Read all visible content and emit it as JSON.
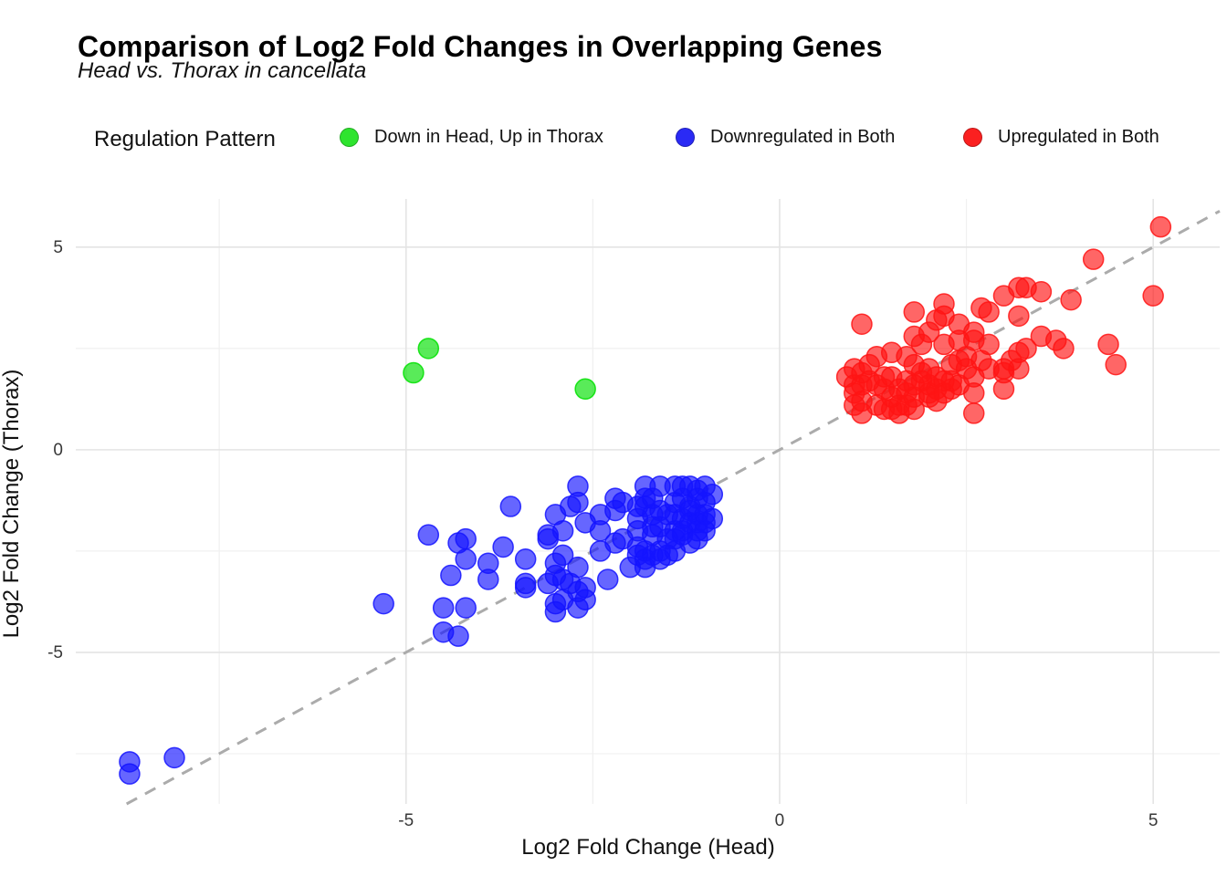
{
  "header": {
    "title": "Comparison of Log2 Fold Changes in Overlapping Genes",
    "subtitle": "Head vs. Thorax in cancellata"
  },
  "legend": {
    "title": "Regulation Pattern",
    "position": "top",
    "items": [
      {
        "label": "Down in Head, Up in Thorax",
        "color": "#2ee42e"
      },
      {
        "label": "Downregulated in Both",
        "color": "#2a2af5"
      },
      {
        "label": "Upregulated in Both",
        "color": "#fb2020"
      }
    ]
  },
  "chart_data": {
    "type": "scatter",
    "title": "Comparison of Log2 Fold Changes in Overlapping Genes",
    "subtitle": "Head vs. Thorax in cancellata",
    "xlabel": "Log2 Fold Change (Head)",
    "ylabel": "Log2 Fold Change (Thorax)",
    "xlim": [
      -9.42,
      5.89
    ],
    "ylim": [
      -8.74,
      6.19
    ],
    "x_ticks": [
      -5,
      0,
      5
    ],
    "y_ticks": [
      -5,
      0,
      5
    ],
    "x_minor_gridlines": [
      -7.5,
      -2.5,
      2.5
    ],
    "y_minor_gridlines": [
      -7.5,
      -2.5,
      2.5
    ],
    "grid": true,
    "legend_position": "top",
    "identity_line": {
      "style": "dashed",
      "slope": 1,
      "intercept": 0,
      "from_x": -8.74,
      "to_x": 5.89,
      "color": "#ababab"
    },
    "point_opacity": 0.65,
    "series": [
      {
        "name": "Down in Head, Up in Thorax",
        "color": "#00e000",
        "points": [
          [
            -4.9,
            1.9
          ],
          [
            -4.7,
            2.5
          ],
          [
            -2.6,
            1.5
          ]
        ]
      },
      {
        "name": "Downregulated in Both",
        "color": "#1414ff",
        "points": [
          [
            -8.7,
            -7.7
          ],
          [
            -8.7,
            -8.0
          ],
          [
            -8.1,
            -7.6
          ],
          [
            -5.3,
            -3.8
          ],
          [
            -4.7,
            -2.1
          ],
          [
            -4.5,
            -3.9
          ],
          [
            -4.5,
            -4.5
          ],
          [
            -4.4,
            -3.1
          ],
          [
            -4.3,
            -2.3
          ],
          [
            -4.3,
            -4.6
          ],
          [
            -4.2,
            -2.2
          ],
          [
            -4.2,
            -2.7
          ],
          [
            -4.2,
            -3.9
          ],
          [
            -3.9,
            -2.8
          ],
          [
            -3.9,
            -3.2
          ],
          [
            -3.7,
            -2.4
          ],
          [
            -3.6,
            -1.4
          ],
          [
            -3.4,
            -2.7
          ],
          [
            -3.4,
            -3.3
          ],
          [
            -3.4,
            -3.4
          ],
          [
            -3.1,
            -2.1
          ],
          [
            -3.1,
            -2.2
          ],
          [
            -3.1,
            -3.3
          ],
          [
            -3.0,
            -1.6
          ],
          [
            -3.0,
            -2.8
          ],
          [
            -3.0,
            -3.1
          ],
          [
            -3.0,
            -3.8
          ],
          [
            -3.0,
            -4.0
          ],
          [
            -2.9,
            -2.0
          ],
          [
            -2.9,
            -2.6
          ],
          [
            -2.9,
            -3.2
          ],
          [
            -2.9,
            -3.7
          ],
          [
            -2.8,
            -1.4
          ],
          [
            -2.8,
            -3.3
          ],
          [
            -2.7,
            -0.9
          ],
          [
            -2.7,
            -1.3
          ],
          [
            -2.7,
            -2.9
          ],
          [
            -2.7,
            -3.5
          ],
          [
            -2.7,
            -3.9
          ],
          [
            -2.6,
            -1.8
          ],
          [
            -2.6,
            -3.4
          ],
          [
            -2.6,
            -3.7
          ],
          [
            -2.4,
            -1.6
          ],
          [
            -2.4,
            -2.0
          ],
          [
            -2.4,
            -2.5
          ],
          [
            -2.3,
            -3.2
          ],
          [
            -2.2,
            -1.2
          ],
          [
            -2.2,
            -1.5
          ],
          [
            -2.2,
            -2.3
          ],
          [
            -2.1,
            -1.3
          ],
          [
            -2.1,
            -2.2
          ],
          [
            -2.0,
            -2.9
          ],
          [
            -1.9,
            -1.4
          ],
          [
            -1.9,
            -1.7
          ],
          [
            -1.9,
            -2.0
          ],
          [
            -1.9,
            -2.4
          ],
          [
            -1.9,
            -2.6
          ],
          [
            -1.8,
            -0.9
          ],
          [
            -1.8,
            -1.2
          ],
          [
            -1.8,
            -1.4
          ],
          [
            -1.8,
            -2.5
          ],
          [
            -1.8,
            -2.7
          ],
          [
            -1.8,
            -2.9
          ],
          [
            -1.7,
            -1.2
          ],
          [
            -1.7,
            -1.6
          ],
          [
            -1.7,
            -1.9
          ],
          [
            -1.7,
            -2.1
          ],
          [
            -1.7,
            -2.6
          ],
          [
            -1.6,
            -0.9
          ],
          [
            -1.6,
            -1.5
          ],
          [
            -1.6,
            -1.9
          ],
          [
            -1.6,
            -2.5
          ],
          [
            -1.6,
            -2.7
          ],
          [
            -1.5,
            -1.6
          ],
          [
            -1.5,
            -2.2
          ],
          [
            -1.5,
            -2.6
          ],
          [
            -1.4,
            -0.9
          ],
          [
            -1.4,
            -1.3
          ],
          [
            -1.4,
            -1.6
          ],
          [
            -1.4,
            -2.0
          ],
          [
            -1.4,
            -2.2
          ],
          [
            -1.4,
            -2.5
          ],
          [
            -1.3,
            -0.9
          ],
          [
            -1.3,
            -1.2
          ],
          [
            -1.3,
            -1.7
          ],
          [
            -1.3,
            -2.0
          ],
          [
            -1.3,
            -2.1
          ],
          [
            -1.2,
            -0.9
          ],
          [
            -1.2,
            -1.4
          ],
          [
            -1.2,
            -1.5
          ],
          [
            -1.2,
            -1.8
          ],
          [
            -1.2,
            -2.3
          ],
          [
            -1.1,
            -1.0
          ],
          [
            -1.1,
            -1.2
          ],
          [
            -1.1,
            -1.6
          ],
          [
            -1.1,
            -1.8
          ],
          [
            -1.1,
            -2.0
          ],
          [
            -1.1,
            -2.2
          ],
          [
            -1.0,
            -0.9
          ],
          [
            -1.0,
            -1.3
          ],
          [
            -1.0,
            -1.6
          ],
          [
            -1.0,
            -1.8
          ],
          [
            -1.0,
            -2.0
          ],
          [
            -0.9,
            -1.1
          ],
          [
            -0.9,
            -1.7
          ]
        ]
      },
      {
        "name": "Upregulated in Both",
        "color": "#ff1414",
        "points": [
          [
            0.9,
            1.8
          ],
          [
            1.0,
            1.1
          ],
          [
            1.0,
            1.4
          ],
          [
            1.0,
            1.6
          ],
          [
            1.0,
            2.0
          ],
          [
            1.1,
            0.9
          ],
          [
            1.1,
            1.2
          ],
          [
            1.1,
            1.6
          ],
          [
            1.1,
            1.9
          ],
          [
            1.1,
            3.1
          ],
          [
            1.2,
            1.7
          ],
          [
            1.2,
            2.1
          ],
          [
            1.3,
            1.1
          ],
          [
            1.3,
            1.6
          ],
          [
            1.3,
            2.3
          ],
          [
            1.4,
            1.0
          ],
          [
            1.4,
            1.5
          ],
          [
            1.4,
            1.8
          ],
          [
            1.5,
            1.0
          ],
          [
            1.5,
            1.3
          ],
          [
            1.5,
            1.8
          ],
          [
            1.5,
            2.4
          ],
          [
            1.6,
            0.9
          ],
          [
            1.6,
            1.1
          ],
          [
            1.6,
            1.5
          ],
          [
            1.7,
            1.1
          ],
          [
            1.7,
            1.4
          ],
          [
            1.7,
            1.7
          ],
          [
            1.7,
            2.3
          ],
          [
            1.8,
            1.0
          ],
          [
            1.8,
            1.3
          ],
          [
            1.8,
            1.6
          ],
          [
            1.8,
            2.1
          ],
          [
            1.8,
            2.8
          ],
          [
            1.8,
            3.4
          ],
          [
            1.9,
            1.7
          ],
          [
            1.9,
            1.9
          ],
          [
            1.9,
            2.6
          ],
          [
            2.0,
            1.3
          ],
          [
            2.0,
            1.4
          ],
          [
            2.0,
            1.6
          ],
          [
            2.0,
            2.0
          ],
          [
            2.0,
            2.9
          ],
          [
            2.1,
            1.2
          ],
          [
            2.1,
            1.5
          ],
          [
            2.1,
            1.8
          ],
          [
            2.1,
            3.2
          ],
          [
            2.2,
            1.4
          ],
          [
            2.2,
            1.7
          ],
          [
            2.2,
            2.6
          ],
          [
            2.2,
            3.3
          ],
          [
            2.2,
            3.6
          ],
          [
            2.3,
            1.5
          ],
          [
            2.3,
            1.7
          ],
          [
            2.3,
            2.1
          ],
          [
            2.4,
            1.6
          ],
          [
            2.4,
            2.2
          ],
          [
            2.4,
            2.7
          ],
          [
            2.4,
            3.1
          ],
          [
            2.5,
            2.0
          ],
          [
            2.5,
            2.3
          ],
          [
            2.6,
            0.9
          ],
          [
            2.6,
            1.4
          ],
          [
            2.6,
            1.8
          ],
          [
            2.6,
            2.7
          ],
          [
            2.6,
            2.9
          ],
          [
            2.7,
            2.2
          ],
          [
            2.7,
            3.5
          ],
          [
            2.8,
            2.0
          ],
          [
            2.8,
            2.6
          ],
          [
            2.8,
            3.4
          ],
          [
            3.0,
            1.5
          ],
          [
            3.0,
            1.9
          ],
          [
            3.0,
            2.0
          ],
          [
            3.0,
            3.8
          ],
          [
            3.1,
            2.2
          ],
          [
            3.2,
            2.0
          ],
          [
            3.2,
            2.4
          ],
          [
            3.2,
            3.3
          ],
          [
            3.2,
            4.0
          ],
          [
            3.3,
            2.5
          ],
          [
            3.3,
            4.0
          ],
          [
            3.5,
            2.8
          ],
          [
            3.5,
            3.9
          ],
          [
            3.7,
            2.7
          ],
          [
            3.8,
            2.5
          ],
          [
            3.9,
            3.7
          ],
          [
            4.2,
            4.7
          ],
          [
            4.4,
            2.6
          ],
          [
            4.5,
            2.1
          ],
          [
            5.0,
            3.8
          ],
          [
            5.1,
            5.5
          ]
        ]
      }
    ]
  }
}
